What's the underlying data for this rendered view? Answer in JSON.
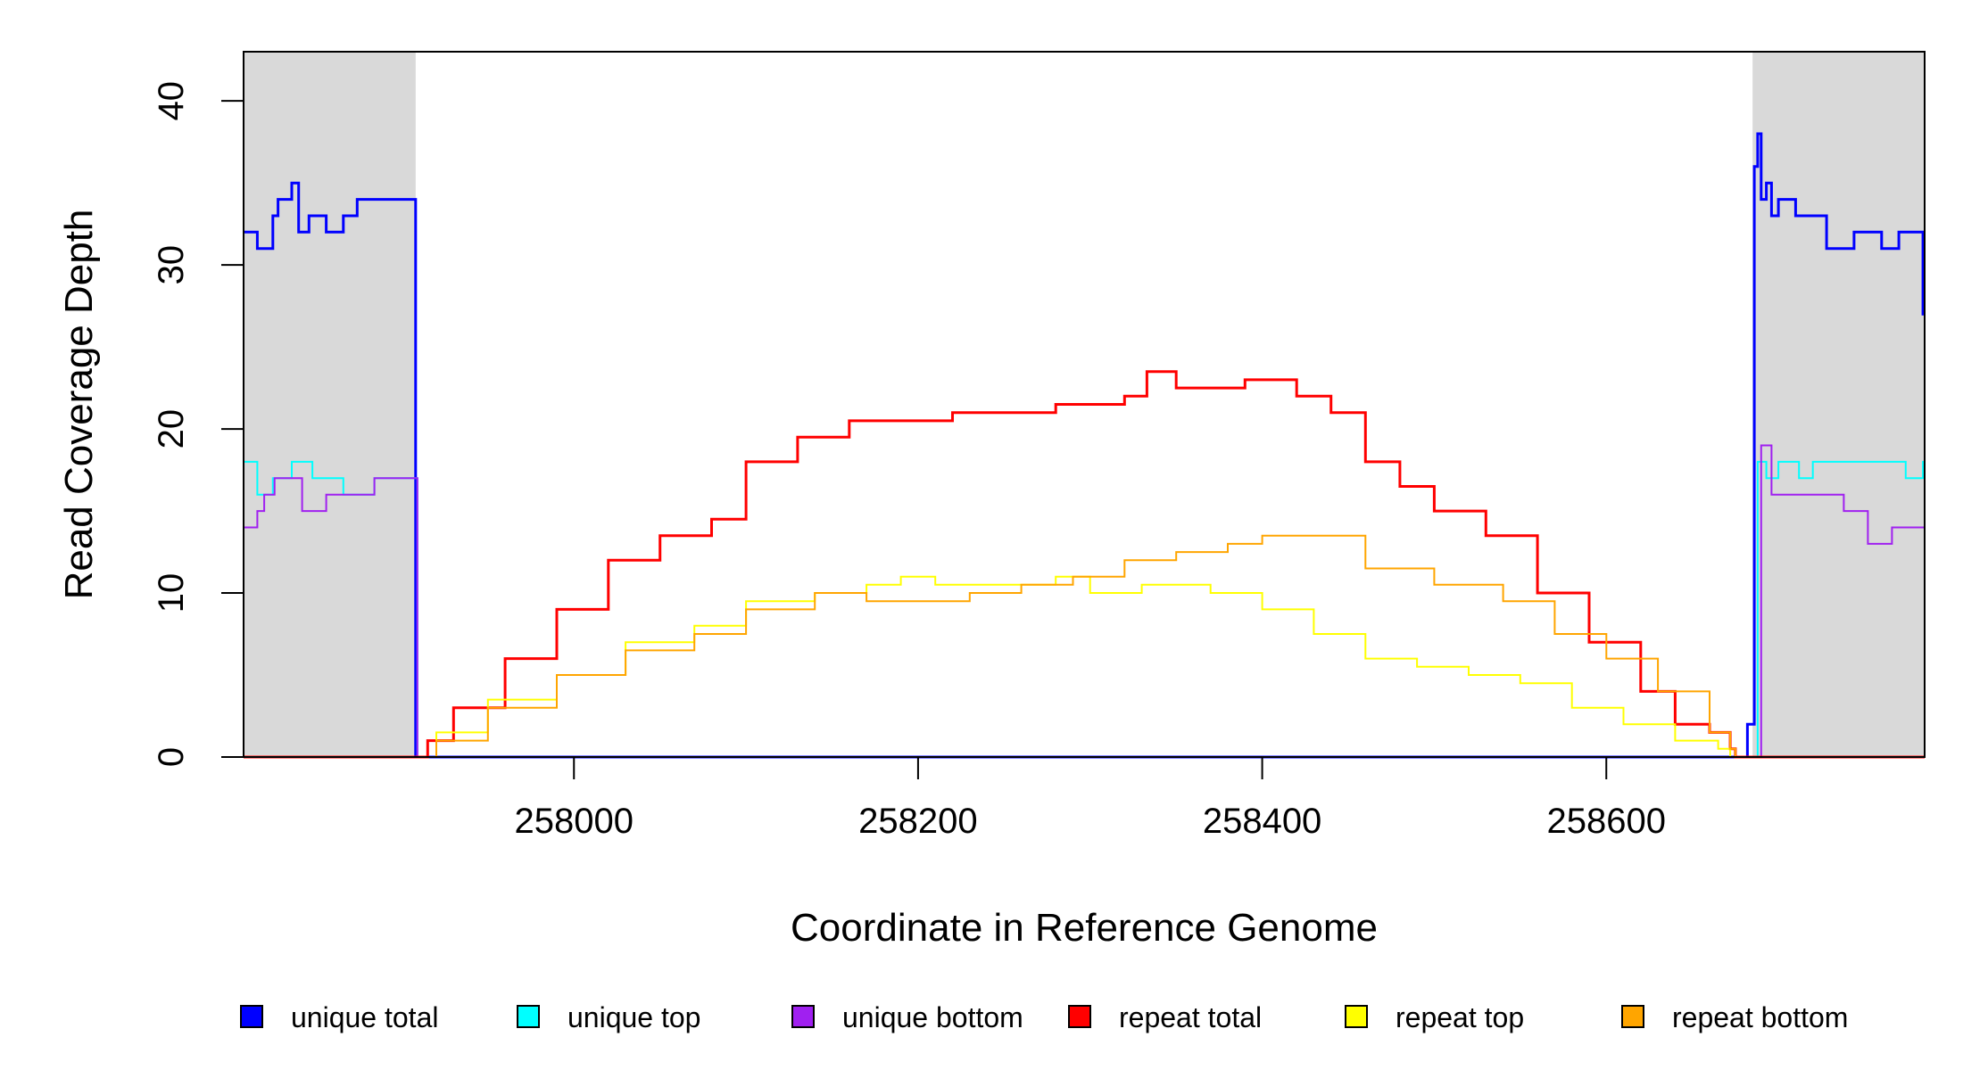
{
  "chart_data": {
    "type": "line",
    "title": "",
    "xlabel": "Coordinate in Reference Genome",
    "ylabel": "Read Coverage Depth",
    "xlim": [
      257808,
      258785
    ],
    "ylim": [
      0,
      43
    ],
    "x_ticks": [
      258000,
      258200,
      258400,
      258600
    ],
    "y_ticks": [
      0,
      10,
      20,
      30,
      40
    ],
    "x_tick_labels": [
      "258000",
      "258200",
      "258400",
      "258600"
    ],
    "y_tick_labels": [
      "0",
      "10",
      "20",
      "30",
      "40"
    ],
    "shaded_regions": [
      [
        257808,
        257908
      ],
      [
        258685,
        258785
      ]
    ],
    "shade_color": "#d9d9d9",
    "grid": false,
    "legend_position": "bottom",
    "series": [
      {
        "name": "unique total",
        "color": "#0000ff",
        "x": [
          257808,
          257816,
          257820,
          257825,
          257828,
          257836,
          257840,
          257846,
          257856,
          257866,
          257874,
          257884,
          257908,
          257909,
          258682,
          258686,
          258688,
          258690,
          258693,
          258696,
          258700,
          258710,
          258720,
          258728,
          258744,
          258758,
          258760,
          258770,
          258774,
          258784,
          258785
        ],
        "y": [
          32,
          31,
          31,
          33,
          34,
          35,
          32,
          33,
          32,
          33,
          34,
          34,
          0,
          0,
          2,
          36,
          38,
          34,
          35,
          33,
          34,
          33,
          33,
          31,
          32,
          32,
          31,
          32,
          32,
          27,
          27
        ]
      },
      {
        "name": "unique top",
        "color": "#00ffff",
        "x": [
          257808,
          257816,
          257820,
          257825,
          257836,
          257848,
          257857,
          257866,
          257884,
          257908,
          257909,
          258686,
          258688,
          258693,
          258700,
          258712,
          258720,
          258770,
          258774,
          258784,
          258785
        ],
        "y": [
          18,
          16,
          16,
          17,
          18,
          17,
          17,
          16,
          17,
          17,
          0,
          0,
          18,
          17,
          18,
          17,
          18,
          18,
          17,
          18,
          15
        ]
      },
      {
        "name": "unique bottom",
        "color": "#a020f0",
        "x": [
          257808,
          257816,
          257820,
          257826,
          257836,
          257842,
          257856,
          257866,
          257884,
          257908,
          257909,
          258686,
          258690,
          258696,
          258714,
          258738,
          258752,
          258766,
          258784,
          258785
        ],
        "y": [
          14,
          15,
          16,
          17,
          17,
          15,
          16,
          16,
          17,
          17,
          0,
          0,
          19,
          16,
          16,
          15,
          13,
          14,
          14,
          12
        ]
      },
      {
        "name": "repeat total",
        "color": "#ff0000",
        "x": [
          257808,
          257909,
          257915,
          257930,
          257960,
          257990,
          258020,
          258050,
          258080,
          258100,
          258130,
          258160,
          258190,
          258220,
          258250,
          258280,
          258300,
          258320,
          258333,
          258350,
          258370,
          258390,
          258420,
          258440,
          258460,
          258480,
          258500,
          258530,
          258560,
          258590,
          258620,
          258640,
          258660,
          258672,
          258675,
          258785
        ],
        "y": [
          0,
          0,
          1,
          3,
          6,
          9,
          12,
          13.5,
          14.5,
          18,
          19.5,
          20.5,
          20.5,
          21,
          21,
          21.5,
          21.5,
          22,
          23.5,
          22.5,
          22.5,
          23,
          22,
          21,
          18,
          16.5,
          15,
          13.5,
          10,
          7,
          4,
          2,
          1.5,
          0.5,
          0,
          0
        ]
      },
      {
        "name": "repeat top",
        "color": "#ffff00",
        "x": [
          257808,
          257909,
          257920,
          257950,
          257990,
          258030,
          258070,
          258100,
          258140,
          258170,
          258190,
          258210,
          258250,
          258280,
          258300,
          258330,
          258370,
          258400,
          258430,
          258460,
          258490,
          258520,
          258550,
          258580,
          258610,
          258640,
          258665,
          258672,
          258785
        ],
        "y": [
          0,
          0,
          1.5,
          3.5,
          5,
          7,
          8,
          9.5,
          10,
          10.5,
          11,
          10.5,
          10.5,
          11,
          10,
          10.5,
          10,
          9,
          7.5,
          6,
          5.5,
          5,
          4.5,
          3,
          2,
          1,
          0.5,
          0,
          0
        ]
      },
      {
        "name": "repeat bottom",
        "color": "#ffa500",
        "x": [
          257808,
          257909,
          257920,
          257950,
          257990,
          258030,
          258070,
          258100,
          258140,
          258170,
          258200,
          258230,
          258260,
          258290,
          258320,
          258350,
          258380,
          258400,
          258440,
          258460,
          258500,
          258540,
          258570,
          258600,
          258630,
          258660,
          258672,
          258675,
          258785
        ],
        "y": [
          0,
          0,
          1,
          3,
          5,
          6.5,
          7.5,
          9,
          10,
          9.5,
          9.5,
          10,
          10.5,
          11,
          12,
          12.5,
          13,
          13.5,
          13.5,
          11.5,
          10.5,
          9.5,
          7.5,
          6,
          4,
          1.5,
          0.5,
          0,
          0
        ]
      }
    ]
  }
}
